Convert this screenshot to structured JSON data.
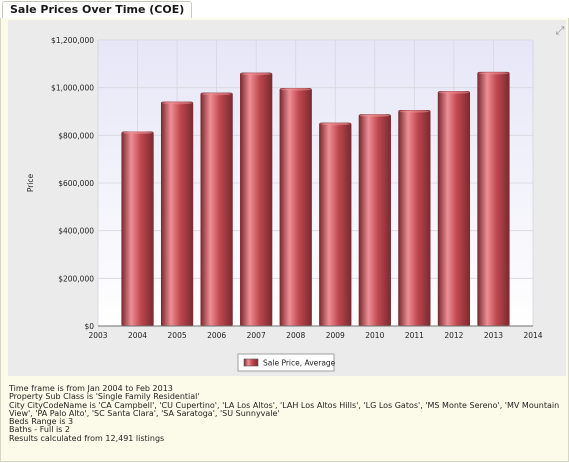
{
  "tab": {
    "title": "Sale Prices Over Time (COE)"
  },
  "icons": {
    "expand": "expand-icon"
  },
  "colors": {
    "bar_fill": "#c0474f",
    "bar_highlight": "#ee8f96",
    "bar_shadow": "#7a2a30",
    "plot_bg_top": "#e6e6f7",
    "plot_bg_bottom": "#ffffff",
    "panel_bg": "#fcfbe9"
  },
  "chart_data": {
    "type": "bar",
    "x": [
      2004,
      2005,
      2006,
      2007,
      2008,
      2009,
      2010,
      2011,
      2012,
      2013
    ],
    "values": [
      815000,
      940000,
      978000,
      1062000,
      997000,
      852000,
      887000,
      905000,
      984000,
      1065000
    ],
    "series": [
      {
        "name": "Sale Price, Average"
      }
    ],
    "xlim": [
      2003,
      2014
    ],
    "x_ticks": [
      "2003",
      "2004",
      "2005",
      "2006",
      "2007",
      "2008",
      "2009",
      "2010",
      "2011",
      "2012",
      "2013",
      "2014"
    ],
    "ylim": [
      0,
      1200000
    ],
    "y_ticks": [
      "$0",
      "$200,000",
      "$400,000",
      "$600,000",
      "$800,000",
      "$1,000,000",
      "$1,200,000"
    ],
    "xlabel": "",
    "ylabel": "Price",
    "legend": "bottom-center",
    "grid": true
  },
  "info": {
    "lines": [
      "Time frame is from Jan 2004 to Feb 2013",
      "Property Sub Class is 'Single Family Residential'",
      "City CityCodeName is 'CA Campbell', 'CU Cupertino', 'LA Los Altos', 'LAH Los Altos Hills', 'LG Los Gatos', 'MS Monte Sereno', 'MV Mountain View', 'PA Palo Alto', 'SC Santa Clara', 'SA Saratoga', 'SU Sunnyvale'",
      "Beds Range is 3",
      "Baths - Full is 2"
    ],
    "results": "Results calculated from 12,491 listings"
  }
}
